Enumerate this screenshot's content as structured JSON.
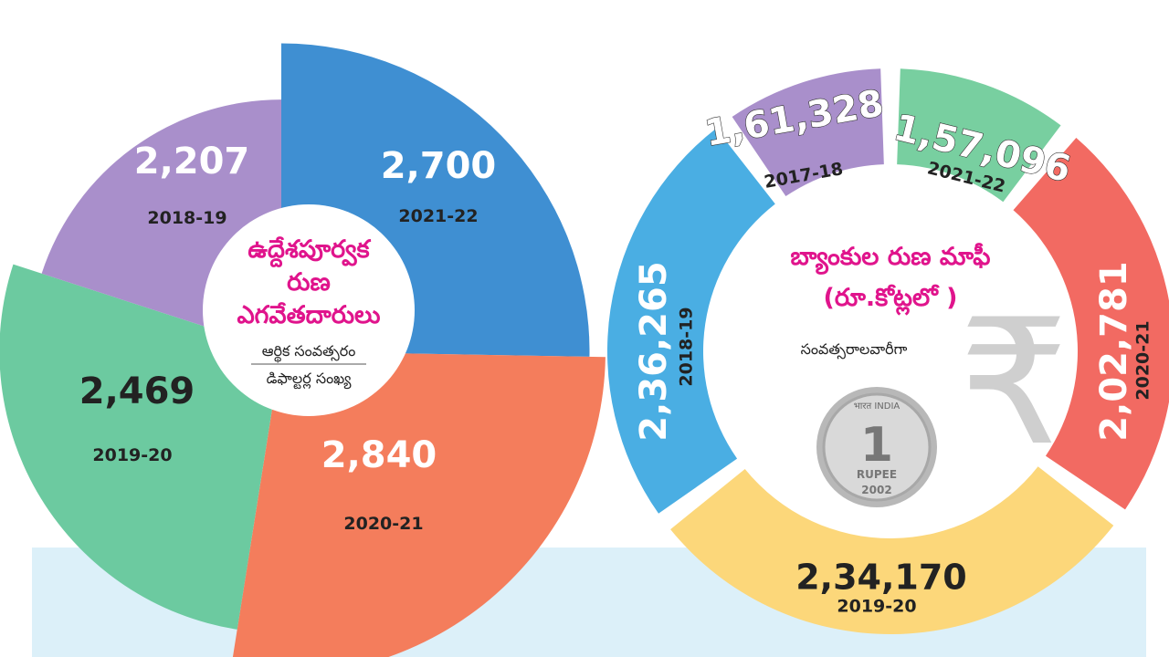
{
  "colors": {
    "background_band": "#dcf0f9",
    "title_pink": "#e0148c",
    "blue": "#3f8fd2",
    "orange": "#f47d5c",
    "green": "#6ccaa0",
    "purple": "#a98fcb",
    "donut_purple": "#a98fcb",
    "donut_green": "#78cfa0",
    "donut_red": "#f26a62",
    "donut_yellow": "#fcd77a",
    "donut_blue": "#4aaee3"
  },
  "chart_data": [
    {
      "type": "pie",
      "title": "ఉద్దేశపూర్వక రుణ ఎగవేతదారులు",
      "subtitle_top": "ఆర్థిక సంవత్సరం",
      "subtitle_bottom": "డిఫాల్టర్ల సంఖ్య",
      "categories": [
        "2021-22",
        "2020-21",
        "2019-20",
        "2018-19"
      ],
      "values": [
        2700,
        2840,
        2469,
        2207
      ],
      "labels": [
        "2,700",
        "2,840",
        "2,469",
        "2,207"
      ],
      "colors": [
        "#3f8fd2",
        "#f47d5c",
        "#6ccaa0",
        "#a98fcb"
      ]
    },
    {
      "type": "pie",
      "title": "బ్యాంకుల రుణ మాఫీ",
      "unit": "(రూ.కోట్లలో )",
      "subtitle": "సంవత్సరాలవారీగా",
      "categories": [
        "2021-22",
        "2020-21",
        "2019-20",
        "2018-19",
        "2017-18"
      ],
      "values": [
        157096,
        202781,
        234170,
        236265,
        161328
      ],
      "labels": [
        "1,57,096",
        "2,02,781",
        "2,34,170",
        "2,36,265",
        "1,61,328"
      ],
      "colors": [
        "#78cfa0",
        "#f26a62",
        "#fcd77a",
        "#4aaee3",
        "#a98fcb"
      ]
    }
  ],
  "coin": {
    "denomination": "1",
    "text": "RUPEE",
    "year": "2002",
    "top_text": "भारत INDIA"
  },
  "rupee_symbol": "₹"
}
